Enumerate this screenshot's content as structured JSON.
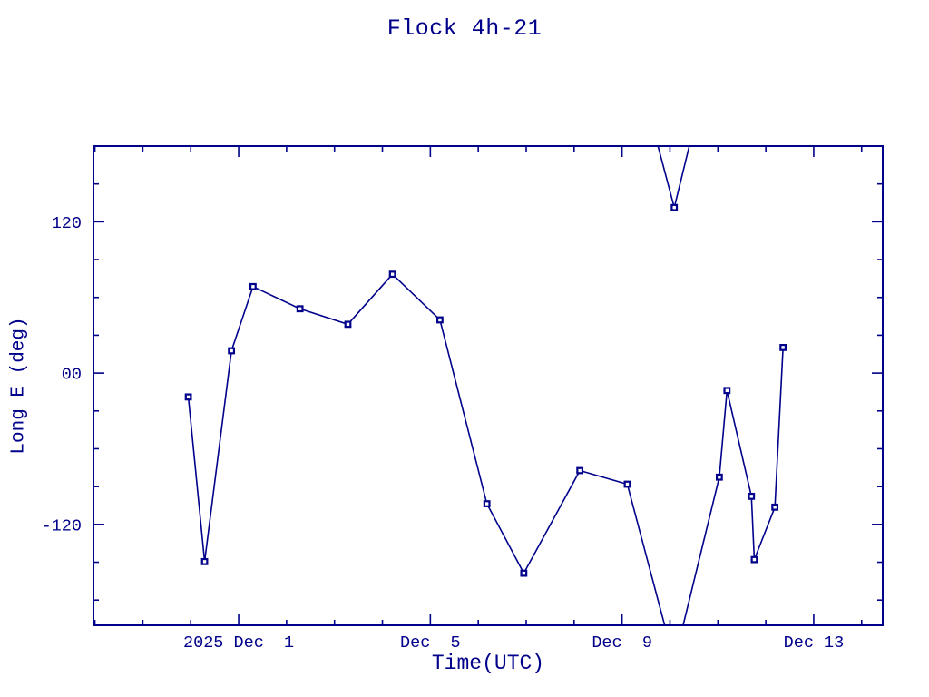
{
  "page": {
    "background": "#ffffff"
  },
  "chart_data": {
    "type": "line",
    "title": "Flock 4h-21",
    "xlabel": "Time(UTC)",
    "ylabel": "Long E (deg)",
    "ink_color": "#00008b",
    "grid": false,
    "legend": false,
    "marker": "open-square",
    "x_unit": "days since 2025-12-01 00:00 UTC",
    "xlim_days": [
      -3.03,
      13.44
    ],
    "ylim": [
      -200,
      180
    ],
    "wrap_degrees": 360,
    "wrap_threshold": 180,
    "x_major_ticks": [
      {
        "t": 0,
        "label": "2025 Dec  1"
      },
      {
        "t": 4,
        "label": "Dec  5"
      },
      {
        "t": 8,
        "label": "Dec  9"
      },
      {
        "t": 12,
        "label": "Dec 13"
      }
    ],
    "x_minor_ticks_days": [
      -3,
      -2,
      -1,
      0,
      1,
      2,
      3,
      4,
      5,
      6,
      7,
      8,
      9,
      10,
      11,
      12,
      13
    ],
    "y_major_ticks": [
      {
        "value": 120,
        "label": "120"
      },
      {
        "value": 0,
        "label": "00"
      },
      {
        "value": -120,
        "label": "-120"
      }
    ],
    "y_minor_ticks": [
      -180,
      -150,
      -120,
      -90,
      -60,
      -30,
      0,
      30,
      60,
      90,
      120,
      150,
      180
    ],
    "points": [
      [
        -1.05,
        -18.9
      ],
      [
        -0.71,
        -149.5
      ],
      [
        -0.15,
        17.7
      ],
      [
        0.3,
        68.6
      ],
      [
        1.28,
        51.0
      ],
      [
        2.28,
        38.7
      ],
      [
        3.21,
        78.4
      ],
      [
        4.2,
        42.2
      ],
      [
        5.18,
        -103.6
      ],
      [
        5.95,
        -158.7
      ],
      [
        7.12,
        -77.3
      ],
      [
        8.11,
        -88.1
      ],
      [
        9.09,
        131.3
      ],
      [
        10.03,
        -82.5
      ],
      [
        10.19,
        -13.8
      ],
      [
        10.7,
        -97.7
      ],
      [
        10.76,
        -147.9
      ],
      [
        11.19,
        -106.3
      ],
      [
        11.36,
        20.3
      ]
    ]
  }
}
